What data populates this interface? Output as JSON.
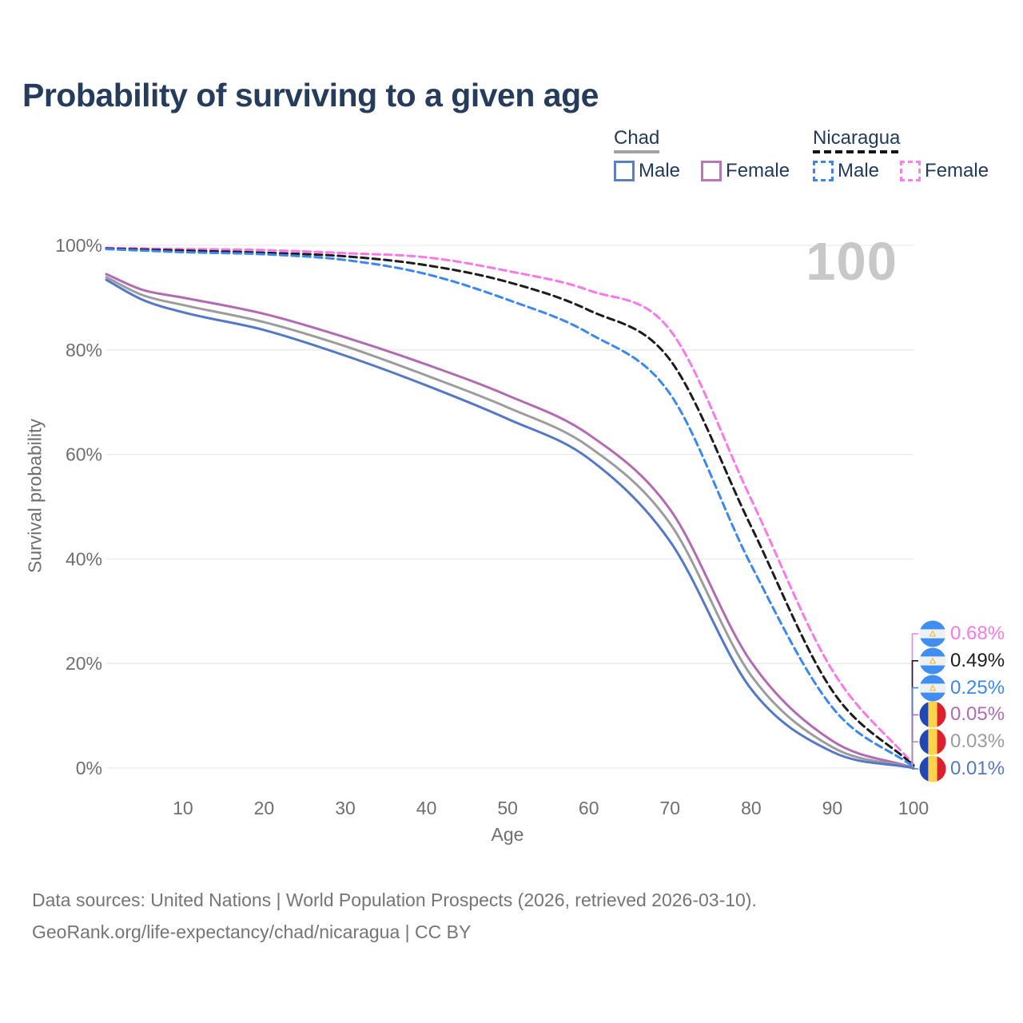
{
  "title": "Probability of surviving to a given age",
  "watermark": "100",
  "legend": {
    "chad": {
      "name": "Chad",
      "male_label": "Male",
      "female_label": "Female",
      "male_color": "#5b7fc0",
      "female_color": "#ba77b8",
      "rule_style": "solid"
    },
    "nicaragua": {
      "name": "Nicaragua",
      "male_label": "Male",
      "female_label": "Female",
      "male_color": "#3a87f0",
      "female_color": "#fb80ea",
      "rule_style": "dashed"
    }
  },
  "axes": {
    "y_title": "Survival probability",
    "x_title": "Age",
    "y_ticks": [
      {
        "value": 100,
        "label": "100%"
      },
      {
        "value": 80,
        "label": "80%"
      },
      {
        "value": 60,
        "label": "60%"
      },
      {
        "value": 40,
        "label": "40%"
      },
      {
        "value": 20,
        "label": "20%"
      },
      {
        "value": 0,
        "label": "0%"
      }
    ],
    "x_ticks": [
      {
        "value": 10,
        "label": "10"
      },
      {
        "value": 20,
        "label": "20"
      },
      {
        "value": 30,
        "label": "30"
      },
      {
        "value": 40,
        "label": "40"
      },
      {
        "value": 50,
        "label": "50"
      },
      {
        "value": 60,
        "label": "60"
      },
      {
        "value": 70,
        "label": "70"
      },
      {
        "value": 80,
        "label": "80"
      },
      {
        "value": 90,
        "label": "90"
      },
      {
        "value": 100,
        "label": "100"
      }
    ]
  },
  "palette": {
    "grid": "#e9e9e9",
    "axis_text": "#6f6f6f",
    "title_text": "#263c5c",
    "watermark_text": "#c8c8c8",
    "footer_text": "#757575"
  },
  "chart_data": {
    "type": "line",
    "title": "Probability of surviving to a given age",
    "xlabel": "Age",
    "ylabel": "Survival probability",
    "xlim": [
      0,
      100
    ],
    "ylim": [
      0,
      100
    ],
    "grid": "horizontal",
    "x": [
      1,
      5,
      10,
      20,
      30,
      40,
      50,
      60,
      70,
      80,
      90,
      100
    ],
    "series": [
      {
        "name": "Nicaragua Female",
        "country": "nicaragua",
        "sex": "female",
        "style": "dashed",
        "color": "#fa78e8",
        "values": [
          99.5,
          99.4,
          99.3,
          99.1,
          98.5,
          97.7,
          95.1,
          91.4,
          83.8,
          51.4,
          18.7,
          0.68
        ],
        "end_label": "0.68%"
      },
      {
        "name": "Nicaragua Both sexes",
        "country": "nicaragua",
        "sex": "both",
        "style": "dashed",
        "color": "#1d1d1d",
        "values": [
          99.4,
          99.2,
          99.0,
          98.6,
          97.9,
          96.2,
          93.0,
          87.6,
          78.1,
          46.2,
          14.8,
          0.49
        ],
        "end_label": "0.49%"
      },
      {
        "name": "Nicaragua Male",
        "country": "nicaragua",
        "sex": "male",
        "style": "dashed",
        "color": "#3a87f0",
        "values": [
          99.3,
          99.0,
          98.7,
          98.3,
          97.2,
          94.5,
          89.6,
          83.2,
          71.6,
          38.8,
          11.6,
          0.25
        ],
        "end_label": "0.25%"
      },
      {
        "name": "Chad Female",
        "country": "chad",
        "sex": "female",
        "style": "solid",
        "color": "#b36ab4",
        "values": [
          94.5,
          91.5,
          90.0,
          86.9,
          82.4,
          77.2,
          71.3,
          63.8,
          49.5,
          20.3,
          5.2,
          0.05
        ],
        "end_label": "0.05%"
      },
      {
        "name": "Chad Both sexes",
        "country": "chad",
        "sex": "both",
        "style": "solid",
        "color": "#9c9c9c",
        "values": [
          93.9,
          90.5,
          88.6,
          85.3,
          80.7,
          75.1,
          69.0,
          61.5,
          46.8,
          17.7,
          4.0,
          0.03
        ],
        "end_label": "0.03%"
      },
      {
        "name": "Chad Male",
        "country": "chad",
        "sex": "male",
        "style": "solid",
        "color": "#5478c6",
        "values": [
          93.4,
          89.6,
          87.2,
          83.8,
          78.9,
          73.2,
          66.8,
          59.2,
          43.4,
          15.1,
          3.1,
          0.01
        ],
        "end_label": "0.01%"
      }
    ]
  },
  "footer": {
    "line1": "Data sources: United Nations | World Population Prospects (2026, retrieved 2026-03-10).",
    "line2": "GeoRank.org/life-expectancy/chad/nicaragua | CC BY"
  }
}
